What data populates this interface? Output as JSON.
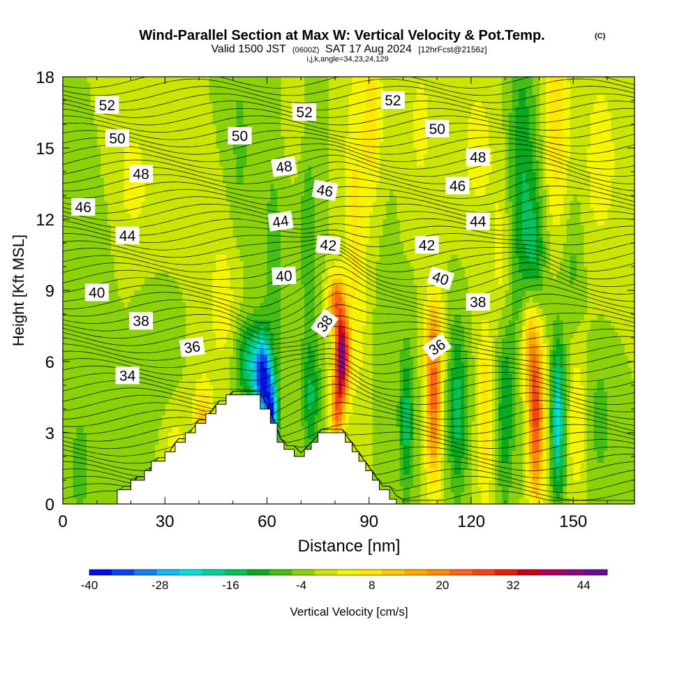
{
  "chart_data": {
    "type": "heatmap",
    "title": {
      "main": "Wind-Parallel Section at Max W: Vertical Velocity & Pot.Temp.",
      "copyright": "(C)",
      "valid_prefix": "Valid 1500 JST",
      "valid_utc": "(0600Z)",
      "valid_date": "SAT 17 Aug 2024",
      "forecast": "[12hrFcst@2156z]",
      "indices": "i,j,k,angle=34,23,24,129"
    },
    "xlabel": "Distance [nm]",
    "ylabel": "Height [Kft MSL]",
    "xlim": [
      0,
      168
    ],
    "ylim": [
      0,
      18
    ],
    "x_ticks": [
      "0",
      "30",
      "60",
      "90",
      "120",
      "150"
    ],
    "y_ticks": [
      "0",
      "3",
      "6",
      "9",
      "12",
      "15",
      "18"
    ],
    "x_tick_values": [
      0,
      30,
      60,
      90,
      120,
      150
    ],
    "y_tick_values": [
      0,
      3,
      6,
      9,
      12,
      15,
      18
    ],
    "colorbar": {
      "label": "Vertical Velocity [cm/s]",
      "min": -40,
      "max": 48,
      "step": 4,
      "tick_labels": [
        "-40",
        "-28",
        "-16",
        "-4",
        "8",
        "20",
        "32",
        "44"
      ],
      "tick_values": [
        -40,
        -28,
        -16,
        -4,
        8,
        20,
        32,
        44
      ],
      "colors": [
        "#0010e6",
        "#0a46f0",
        "#1480f5",
        "#10bcf5",
        "#00e3dc",
        "#00d29a",
        "#05c25a",
        "#0aaa1e",
        "#46be14",
        "#8cd20a",
        "#c8e600",
        "#f5f500",
        "#ffe600",
        "#ffc800",
        "#ffaa00",
        "#ff8c00",
        "#ff6414",
        "#f04614",
        "#e61e0a",
        "#c8001e",
        "#aa005a",
        "#8c0a78",
        "#6e0a96"
      ]
    },
    "series": [
      {
        "name": "Vertical Velocity",
        "units": "cm/s"
      },
      {
        "name": "Potential Temperature",
        "units": "contour labels"
      }
    ],
    "terrain": [
      [
        0,
        0
      ],
      [
        14,
        0
      ],
      [
        16,
        0
      ],
      [
        16,
        0.6
      ],
      [
        20,
        0.6
      ],
      [
        20,
        1.0
      ],
      [
        24,
        1.0
      ],
      [
        24,
        1.4
      ],
      [
        26,
        1.4
      ],
      [
        26,
        1.8
      ],
      [
        30,
        1.8
      ],
      [
        30,
        2.2
      ],
      [
        33,
        2.2
      ],
      [
        33,
        2.6
      ],
      [
        36,
        2.6
      ],
      [
        36,
        3.0
      ],
      [
        39,
        3.0
      ],
      [
        39,
        3.4
      ],
      [
        42,
        3.4
      ],
      [
        42,
        3.8
      ],
      [
        45,
        3.8
      ],
      [
        45,
        4.2
      ],
      [
        48,
        4.2
      ],
      [
        48,
        4.6
      ],
      [
        58,
        4.6
      ],
      [
        58,
        4.0
      ],
      [
        61,
        4.0
      ],
      [
        61,
        3.4
      ],
      [
        63,
        3.4
      ],
      [
        63,
        2.6
      ],
      [
        65,
        2.6
      ],
      [
        65,
        2.3
      ],
      [
        68,
        2.3
      ],
      [
        68,
        2.0
      ],
      [
        71,
        2.0
      ],
      [
        71,
        2.3
      ],
      [
        73,
        2.3
      ],
      [
        73,
        2.6
      ],
      [
        75,
        2.6
      ],
      [
        75,
        3.0
      ],
      [
        83,
        3.0
      ],
      [
        83,
        2.6
      ],
      [
        85,
        2.6
      ],
      [
        85,
        2.2
      ],
      [
        87,
        2.2
      ],
      [
        87,
        1.8
      ],
      [
        89,
        1.8
      ],
      [
        89,
        1.4
      ],
      [
        91,
        1.4
      ],
      [
        91,
        1.0
      ],
      [
        93,
        1.0
      ],
      [
        93,
        0.6
      ],
      [
        96,
        0.6
      ],
      [
        96,
        0.2
      ],
      [
        98,
        0.2
      ],
      [
        98,
        0
      ],
      [
        168,
        0
      ]
    ],
    "w_features": [
      {
        "x": 82,
        "y": 6.3,
        "sx": 1.4,
        "sy": 1.3,
        "amp": 46
      },
      {
        "x": 80,
        "y": 8.6,
        "sx": 1.6,
        "sy": 0.8,
        "amp": 22
      },
      {
        "x": 80.5,
        "y": 4.0,
        "sx": 1.3,
        "sy": 1.2,
        "amp": 22
      },
      {
        "x": 86,
        "y": 11.5,
        "sx": 2.5,
        "sy": 5.0,
        "amp": 9
      },
      {
        "x": 91,
        "y": 16.5,
        "sx": 2.0,
        "sy": 2.5,
        "amp": 10
      },
      {
        "x": 59,
        "y": 5.2,
        "sx": 1.8,
        "sy": 1.2,
        "amp": -34
      },
      {
        "x": 61.5,
        "y": 3.7,
        "sx": 1.2,
        "sy": 0.9,
        "amp": -28
      },
      {
        "x": 55,
        "y": 6.0,
        "sx": 3.0,
        "sy": 1.2,
        "amp": -16
      },
      {
        "x": 73,
        "y": 4.5,
        "sx": 1.8,
        "sy": 1.8,
        "amp": -12
      },
      {
        "x": 72,
        "y": 12.0,
        "sx": 2.2,
        "sy": 4.0,
        "amp": -6
      },
      {
        "x": 62,
        "y": 10.5,
        "sx": 3.0,
        "sy": 5.0,
        "amp": -5
      },
      {
        "x": 52,
        "y": 15.0,
        "sx": 2.5,
        "sy": 3.0,
        "amp": -5
      },
      {
        "x": 109,
        "y": 4.2,
        "sx": 1.6,
        "sy": 2.4,
        "amp": 25
      },
      {
        "x": 109,
        "y": 7.2,
        "sx": 2.0,
        "sy": 1.2,
        "amp": 10
      },
      {
        "x": 116,
        "y": 4.0,
        "sx": 2.0,
        "sy": 2.6,
        "amp": -14
      },
      {
        "x": 101,
        "y": 3.5,
        "sx": 1.5,
        "sy": 2.3,
        "amp": -14
      },
      {
        "x": 124,
        "y": 3.8,
        "sx": 1.6,
        "sy": 2.6,
        "amp": 12
      },
      {
        "x": 130,
        "y": 4.0,
        "sx": 1.8,
        "sy": 2.7,
        "amp": -12
      },
      {
        "x": 139,
        "y": 3.8,
        "sx": 1.7,
        "sy": 2.6,
        "amp": 30
      },
      {
        "x": 137,
        "y": 6.8,
        "sx": 1.6,
        "sy": 1.5,
        "amp": 14
      },
      {
        "x": 145.5,
        "y": 3.6,
        "sx": 1.5,
        "sy": 2.4,
        "amp": -22
      },
      {
        "x": 151,
        "y": 3.5,
        "sx": 1.8,
        "sy": 2.3,
        "amp": 8
      },
      {
        "x": 158,
        "y": 3.5,
        "sx": 2.5,
        "sy": 2.0,
        "amp": -6
      },
      {
        "x": 135,
        "y": 13.5,
        "sx": 3.0,
        "sy": 4.5,
        "amp": -12
      },
      {
        "x": 139,
        "y": 10.5,
        "sx": 2.0,
        "sy": 2.0,
        "amp": -10
      },
      {
        "x": 129,
        "y": 10.0,
        "sx": 2.0,
        "sy": 2.5,
        "amp": 6
      },
      {
        "x": 145,
        "y": 16.0,
        "sx": 2.5,
        "sy": 3.0,
        "amp": 12
      },
      {
        "x": 150,
        "y": 10.0,
        "sx": 2.0,
        "sy": 2.0,
        "amp": -5
      },
      {
        "x": 105,
        "y": 16.0,
        "sx": 3.0,
        "sy": 2.5,
        "amp": 5
      },
      {
        "x": 122,
        "y": 15.0,
        "sx": 5.0,
        "sy": 3.0,
        "amp": 5
      },
      {
        "x": 158,
        "y": 14.5,
        "sx": 4.0,
        "sy": 3.0,
        "amp": 6
      },
      {
        "x": 41,
        "y": 3.4,
        "sx": 2.0,
        "sy": 1.2,
        "amp": 14
      },
      {
        "x": 33,
        "y": 2.2,
        "sx": 2.0,
        "sy": 1.0,
        "amp": 8
      },
      {
        "x": 47,
        "y": 8.5,
        "sx": 3.5,
        "sy": 2.5,
        "amp": 6
      },
      {
        "x": 20,
        "y": 13.5,
        "sx": 6.0,
        "sy": 3.0,
        "amp": 5
      },
      {
        "x": 5,
        "y": 1.5,
        "sx": 2.0,
        "sy": 1.5,
        "amp": -8
      },
      {
        "x": 10,
        "y": 11.0,
        "sx": 5.0,
        "sy": 3.0,
        "amp": -3
      },
      {
        "x": 25,
        "y": 7.0,
        "sx": 4.0,
        "sy": 2.0,
        "amp": -3
      },
      {
        "x": 68,
        "y": 16.5,
        "sx": 3.0,
        "sy": 2.0,
        "amp": 5
      },
      {
        "x": 95,
        "y": 6.0,
        "sx": 2.0,
        "sy": 3.0,
        "amp": -4
      }
    ],
    "theta_labels": [
      {
        "text": "52",
        "x": 13,
        "y": 16.8,
        "angle": 0
      },
      {
        "text": "50",
        "x": 16,
        "y": 15.4,
        "angle": 0
      },
      {
        "text": "48",
        "x": 23,
        "y": 13.9,
        "angle": 0
      },
      {
        "text": "46",
        "x": 6,
        "y": 12.5,
        "angle": 0
      },
      {
        "text": "44",
        "x": 19,
        "y": 11.3,
        "angle": 0
      },
      {
        "text": "40",
        "x": 10,
        "y": 8.9,
        "angle": 0
      },
      {
        "text": "38",
        "x": 23,
        "y": 7.7,
        "angle": 0
      },
      {
        "text": "36",
        "x": 38,
        "y": 6.6,
        "angle": -8
      },
      {
        "text": "34",
        "x": 19,
        "y": 5.4,
        "angle": 0
      },
      {
        "text": "50",
        "x": 52,
        "y": 15.5,
        "angle": 0
      },
      {
        "text": "52",
        "x": 71,
        "y": 16.5,
        "angle": 0
      },
      {
        "text": "48",
        "x": 65,
        "y": 14.2,
        "angle": -8
      },
      {
        "text": "46",
        "x": 77,
        "y": 13.2,
        "angle": 10
      },
      {
        "text": "44",
        "x": 64,
        "y": 11.9,
        "angle": -8
      },
      {
        "text": "42",
        "x": 78,
        "y": 10.9,
        "angle": 5
      },
      {
        "text": "40",
        "x": 65,
        "y": 9.6,
        "angle": -3
      },
      {
        "text": "38",
        "x": 77,
        "y": 7.6,
        "angle": -55
      },
      {
        "text": "52",
        "x": 97,
        "y": 17.0,
        "angle": 0
      },
      {
        "text": "50",
        "x": 110,
        "y": 15.8,
        "angle": 0
      },
      {
        "text": "48",
        "x": 122,
        "y": 14.6,
        "angle": 0
      },
      {
        "text": "46",
        "x": 116,
        "y": 13.4,
        "angle": 0
      },
      {
        "text": "44",
        "x": 122,
        "y": 11.9,
        "angle": 0
      },
      {
        "text": "42",
        "x": 107,
        "y": 10.9,
        "angle": 0
      },
      {
        "text": "40",
        "x": 111,
        "y": 9.5,
        "angle": 18
      },
      {
        "text": "38",
        "x": 122,
        "y": 8.5,
        "angle": 0
      },
      {
        "text": "36",
        "x": 110,
        "y": 6.6,
        "angle": -35
      }
    ]
  }
}
